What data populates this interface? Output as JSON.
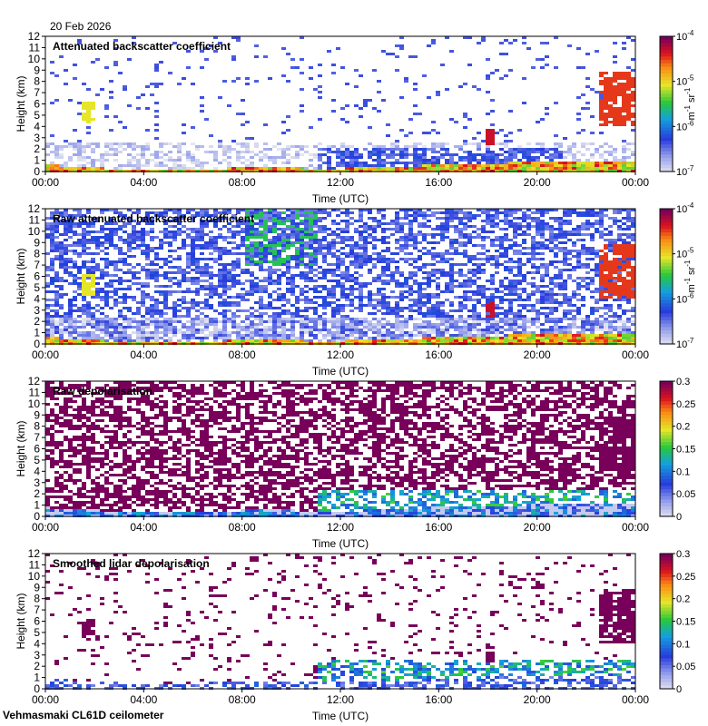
{
  "header": {
    "date": "20 Feb 2026"
  },
  "footer": {
    "site_label": "Vehmasmaki CL61D ceilometer"
  },
  "chart_data": [
    {
      "type": "heatmap",
      "title": "Attenuated backscatter coefficient",
      "xlabel": "Time (UTC)",
      "ylabel": "Height (km)",
      "x_ticks": [
        "00:00",
        "04:00",
        "08:00",
        "12:00",
        "16:00",
        "20:00",
        "00:00"
      ],
      "xlim_hours": [
        0,
        24
      ],
      "ylim": [
        0,
        12
      ],
      "y_ticks": [
        0,
        1,
        2,
        3,
        4,
        5,
        6,
        7,
        8,
        9,
        10,
        11,
        12
      ],
      "colorbar": {
        "scale": "log",
        "ticks": [
          "10",
          "10",
          "10",
          "10"
        ],
        "exponents": [
          "-7",
          "-6",
          "-5",
          "-4"
        ],
        "tick_values": [
          1e-07,
          1e-06,
          1e-05,
          0.0001
        ],
        "unit": "m",
        "unit_exp": "-1",
        "unit2": "sr",
        "unit2_exp": "-1"
      },
      "features": {
        "boundary_layer_top_km": [
          [
            0,
            0.7
          ],
          [
            2,
            0.45
          ],
          [
            4,
            0.2
          ],
          [
            6,
            0.3
          ],
          [
            8,
            0.45
          ],
          [
            10,
            0.45
          ],
          [
            11,
            0.35
          ],
          [
            14,
            0.5
          ],
          [
            16,
            0.75
          ],
          [
            18,
            0.85
          ],
          [
            20,
            0.95
          ]
        ],
        "clouds": [
          {
            "t_start": 1.3,
            "t_end": 1.9,
            "h_bottom": 4.5,
            "h_top": 6.3,
            "level": 0.65
          },
          {
            "t_start": 17.8,
            "t_end": 18.1,
            "h_bottom": 2.5,
            "h_top": 4.0,
            "level": 0.9
          },
          {
            "t_start": 22.4,
            "t_end": 24.0,
            "h_bottom": 4.2,
            "h_top": 9.0,
            "level": 0.85
          }
        ]
      }
    },
    {
      "type": "heatmap",
      "title": "Raw attenuated backscatter coefficient",
      "xlabel": "Time (UTC)",
      "ylabel": "Height (km)",
      "x_ticks": [
        "00:00",
        "04:00",
        "08:00",
        "12:00",
        "16:00",
        "20:00",
        "00:00"
      ],
      "xlim_hours": [
        0,
        24
      ],
      "ylim": [
        0,
        12
      ],
      "y_ticks": [
        0,
        1,
        2,
        3,
        4,
        5,
        6,
        7,
        8,
        9,
        10,
        11,
        12
      ],
      "colorbar": {
        "scale": "log",
        "ticks": [
          "10",
          "10",
          "10",
          "10"
        ],
        "exponents": [
          "-7",
          "-6",
          "-5",
          "-4"
        ],
        "tick_values": [
          1e-07,
          1e-06,
          1e-05,
          0.0001
        ],
        "unit": "m",
        "unit_exp": "-1",
        "unit2": "sr",
        "unit2_exp": "-1"
      }
    },
    {
      "type": "heatmap",
      "title": "Raw depolarisation",
      "xlabel": "Time (UTC)",
      "ylabel": "Height (km)",
      "x_ticks": [
        "00:00",
        "04:00",
        "08:00",
        "12:00",
        "16:00",
        "20:00",
        "00:00"
      ],
      "xlim_hours": [
        0,
        24
      ],
      "ylim": [
        0,
        12
      ],
      "y_ticks": [
        0,
        1,
        2,
        3,
        4,
        5,
        6,
        7,
        8,
        9,
        10,
        11,
        12
      ],
      "colorbar": {
        "scale": "linear",
        "ticks": [
          "0",
          "0.05",
          "0.1",
          "0.15",
          "0.2",
          "0.25",
          "0.3"
        ],
        "tick_values": [
          0,
          0.05,
          0.1,
          0.15,
          0.2,
          0.25,
          0.3
        ]
      }
    },
    {
      "type": "heatmap",
      "title": "Smoothed lidar depolarisation",
      "xlabel": "Time (UTC)",
      "ylabel": "Height (km)",
      "x_ticks": [
        "00:00",
        "04:00",
        "08:00",
        "12:00",
        "16:00",
        "20:00",
        "00:00"
      ],
      "xlim_hours": [
        0,
        24
      ],
      "ylim": [
        0,
        12
      ],
      "y_ticks": [
        0,
        1,
        2,
        3,
        4,
        5,
        6,
        7,
        8,
        9,
        10,
        11,
        12
      ],
      "colorbar": {
        "scale": "linear",
        "ticks": [
          "0",
          "0.05",
          "0.1",
          "0.15",
          "0.2",
          "0.25",
          "0.3"
        ],
        "tick_values": [
          0,
          0.05,
          0.1,
          0.15,
          0.2,
          0.25,
          0.3
        ]
      }
    }
  ]
}
